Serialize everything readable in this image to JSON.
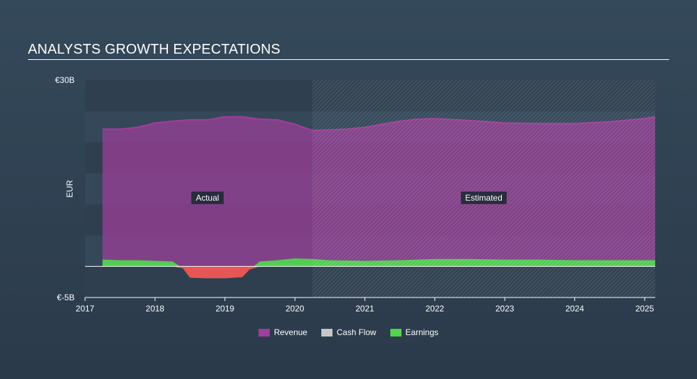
{
  "chart_data": {
    "type": "area",
    "title": "ANALYSTS GROWTH EXPECTATIONS",
    "ylabel": "EUR",
    "xlabel": "",
    "ylim": [
      -5,
      30
    ],
    "xlim": [
      2017,
      2025.15
    ],
    "y_tick_labels": [
      "€30B",
      "€-5B"
    ],
    "x_ticks": [
      2017,
      2018,
      2019,
      2020,
      2021,
      2022,
      2023,
      2024,
      2025
    ],
    "x_tick_labels": [
      "2017",
      "2018",
      "2019",
      "2020",
      "2021",
      "2022",
      "2023",
      "2024",
      "2025"
    ],
    "actual_end": 2020.25,
    "region_labels": {
      "actual": "Actual",
      "estimated": "Estimated"
    },
    "series": [
      {
        "name": "Revenue",
        "color": "#a03f9a",
        "x": [
          2017.25,
          2017.5,
          2017.75,
          2018.0,
          2018.25,
          2018.5,
          2018.75,
          2019.0,
          2019.25,
          2019.5,
          2019.75,
          2020.0,
          2020.25,
          2020.5,
          2020.75,
          2021.0,
          2021.25,
          2021.5,
          2021.75,
          2022.0,
          2022.5,
          2023.0,
          2023.5,
          2024.0,
          2024.5,
          2025.0,
          2025.15
        ],
        "values": [
          22.1,
          22.1,
          22.4,
          23.1,
          23.4,
          23.6,
          23.6,
          24.1,
          24.1,
          23.7,
          23.6,
          22.9,
          21.9,
          22.0,
          22.1,
          22.4,
          22.9,
          23.4,
          23.7,
          23.8,
          23.5,
          23.1,
          23.0,
          23.0,
          23.3,
          23.8,
          24.1
        ]
      },
      {
        "name": "Earnings",
        "color": "#4fd54f",
        "x": [
          2017.25,
          2017.5,
          2017.75,
          2018.0,
          2018.25,
          2018.4,
          2018.5,
          2018.75,
          2019.0,
          2019.25,
          2019.35,
          2019.5,
          2019.75,
          2020.0,
          2020.25,
          2020.5,
          2021.0,
          2021.5,
          2022.0,
          2022.5,
          2023.0,
          2023.5,
          2024.0,
          2024.5,
          2025.0,
          2025.15
        ],
        "values": [
          1.1,
          1.0,
          1.0,
          0.9,
          0.8,
          -0.3,
          -1.8,
          -1.9,
          -1.9,
          -1.7,
          -0.5,
          0.8,
          1.0,
          1.3,
          1.2,
          1.0,
          0.9,
          1.0,
          1.2,
          1.2,
          1.1,
          1.1,
          1.0,
          1.0,
          1.0,
          1.0
        ]
      }
    ],
    "legend": [
      {
        "name": "Revenue",
        "color": "#a03f9a"
      },
      {
        "name": "Cash Flow",
        "color": "#c8c8c8"
      },
      {
        "name": "Earnings",
        "color": "#4fd54f"
      }
    ]
  }
}
